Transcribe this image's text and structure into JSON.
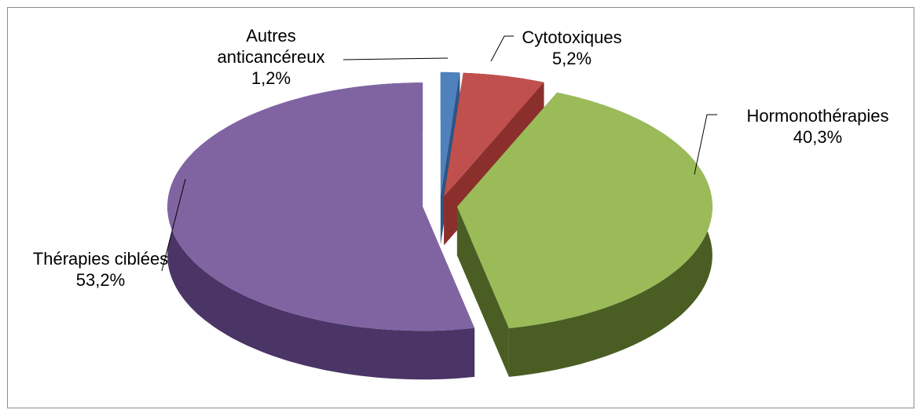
{
  "chart_data": {
    "type": "pie",
    "categories": [
      "Autres anticancéreux",
      "Cytotoxiques",
      "Hormonothérapies",
      "Thérapies ciblées"
    ],
    "values": [
      1.2,
      5.2,
      40.3,
      53.2
    ],
    "value_labels": [
      "1,2%",
      "5,2%",
      "40,3%",
      "53,2%"
    ],
    "colors": [
      "#4f81bd",
      "#c0504d",
      "#9bbb59",
      "#8064a2"
    ],
    "side_colors": [
      "#2f5586",
      "#8b2f2d",
      "#4a5e24",
      "#4a3566"
    ]
  }
}
